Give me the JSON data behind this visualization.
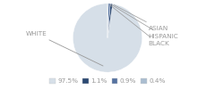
{
  "labels": [
    "WHITE",
    "ASIAN",
    "HISPANIC",
    "BLACK"
  ],
  "values": [
    97.5,
    1.1,
    0.9,
    0.4
  ],
  "colors": [
    "#d6dfe8",
    "#2b4872",
    "#5572a0",
    "#aabdd0"
  ],
  "legend_labels": [
    "97.5%",
    "1.1%",
    "0.9%",
    "0.4%"
  ],
  "legend_colors": [
    "#d6dfe8",
    "#2b4872",
    "#5572a0",
    "#aabdd0"
  ],
  "startangle": 90,
  "background_color": "#ffffff",
  "text_color": "#999999",
  "font_size": 5.2
}
